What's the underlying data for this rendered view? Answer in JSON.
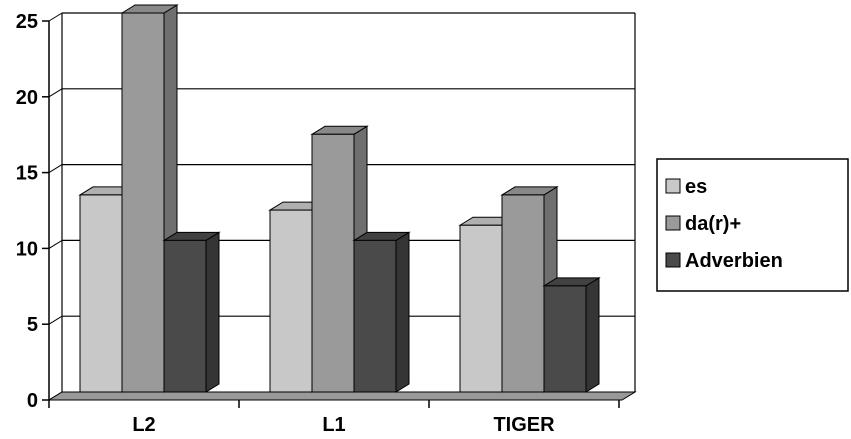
{
  "chart_data": {
    "type": "bar",
    "style": "3d-clustered-column",
    "categories": [
      "L2",
      "L1",
      "TIGER"
    ],
    "series": [
      {
        "name": "es",
        "values": [
          13,
          12,
          11
        ]
      },
      {
        "name": "da(r)+",
        "values": [
          25,
          17,
          13
        ]
      },
      {
        "name": "Adverbien",
        "values": [
          10,
          10,
          7
        ]
      }
    ],
    "y_ticks": [
      "0",
      "5",
      "10",
      "15",
      "20",
      "25"
    ],
    "ylim": [
      0,
      25
    ],
    "grid": true,
    "legend_position": "right"
  },
  "colors": {
    "es": "#c8c8c8",
    "da(r)+": "#9a9a9a",
    "Adverbien": "#4a4a4a",
    "floor": "#999999",
    "background": "#ffffff",
    "grid": "#000000"
  }
}
